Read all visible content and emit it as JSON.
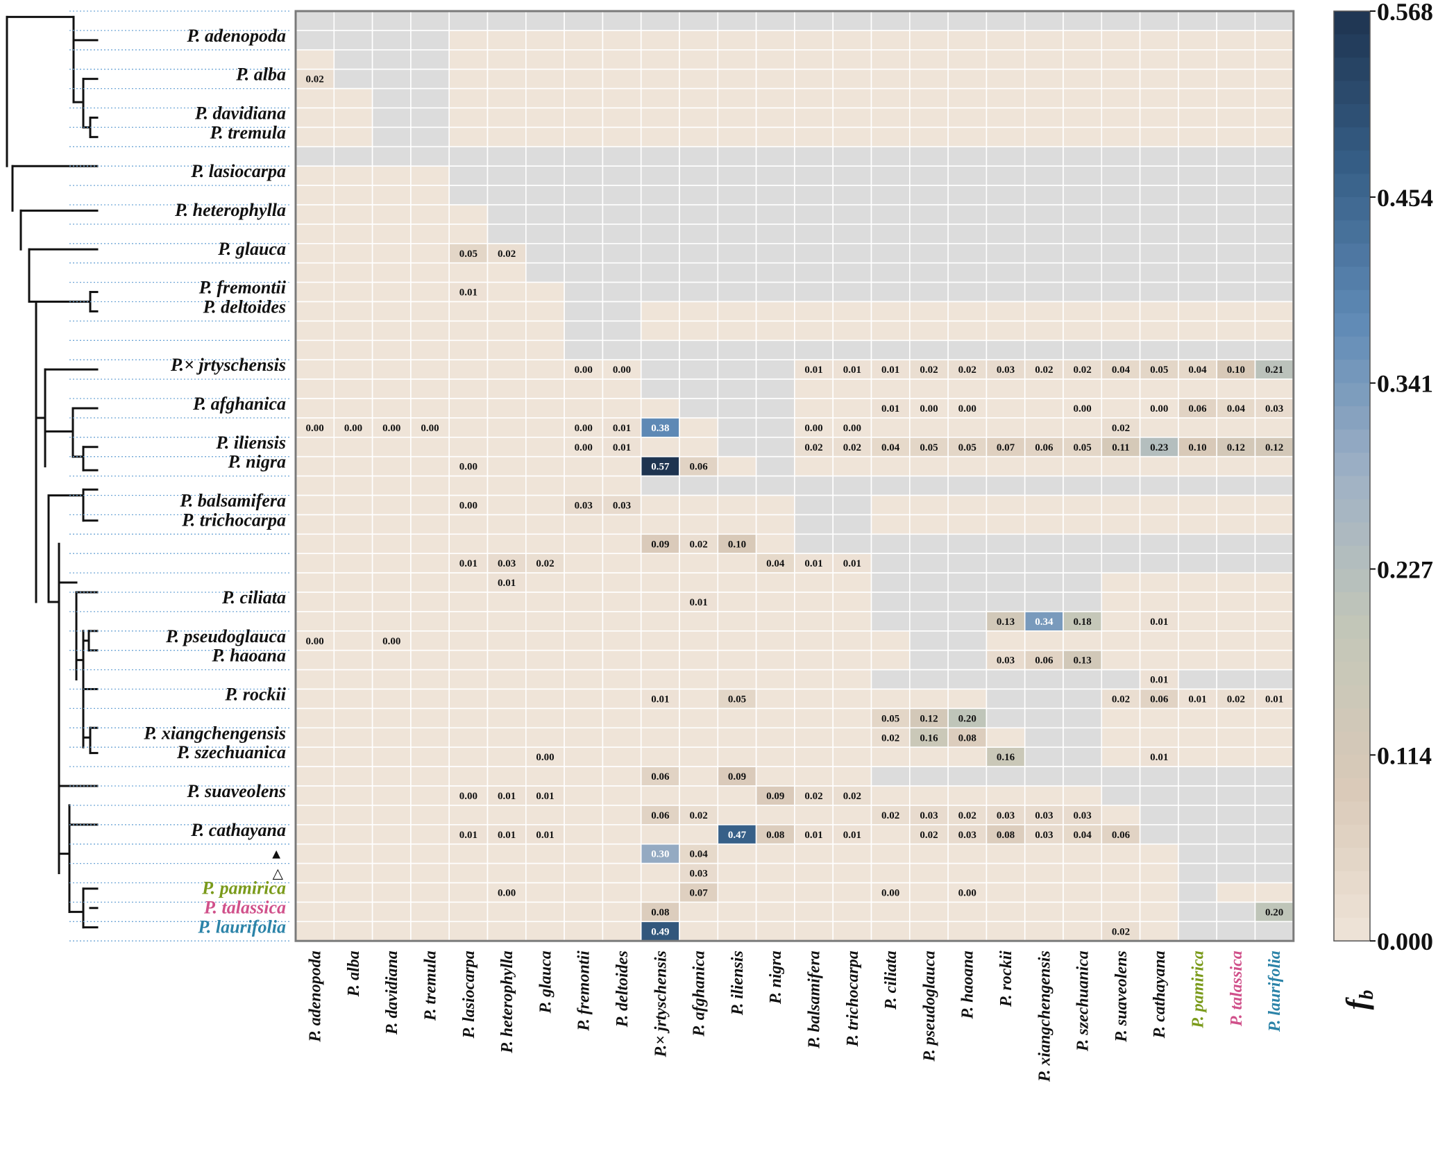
{
  "chart_data": {
    "type": "heatmap",
    "title": "",
    "colorbar": {
      "label": "f",
      "label_sub": "b",
      "ticks": [
        "0.000",
        "0.114",
        "0.227",
        "0.341",
        "0.454",
        "0.568"
      ],
      "range": [
        0,
        0.568
      ],
      "colors": [
        "#efe4d8",
        "#d9c9b8",
        "#c3c7b8",
        "#9fb1c5",
        "#5f8ab6",
        "#365e86",
        "#1e3450"
      ]
    },
    "columns": [
      {
        "label": "P. adenopoda",
        "color": "#111111"
      },
      {
        "label": "P. alba",
        "color": "#111111"
      },
      {
        "label": "P. davidiana",
        "color": "#111111"
      },
      {
        "label": "P. tremula",
        "color": "#111111"
      },
      {
        "label": "P. lasiocarpa",
        "color": "#111111"
      },
      {
        "label": "P. heterophylla",
        "color": "#111111"
      },
      {
        "label": "P. glauca",
        "color": "#111111"
      },
      {
        "label": "P. fremontii",
        "color": "#111111"
      },
      {
        "label": "P. deltoides",
        "color": "#111111"
      },
      {
        "label": "P.× jrtyschensis",
        "color": "#111111"
      },
      {
        "label": "P. afghanica",
        "color": "#111111"
      },
      {
        "label": "P. iliensis",
        "color": "#111111"
      },
      {
        "label": "P. nigra",
        "color": "#111111"
      },
      {
        "label": "P. balsamifera",
        "color": "#111111"
      },
      {
        "label": "P. trichocarpa",
        "color": "#111111"
      },
      {
        "label": "P. ciliata",
        "color": "#111111"
      },
      {
        "label": "P. pseudoglauca",
        "color": "#111111"
      },
      {
        "label": "P. haoana",
        "color": "#111111"
      },
      {
        "label": "P. rockii",
        "color": "#111111"
      },
      {
        "label": "P. xiangchengensis",
        "color": "#111111"
      },
      {
        "label": "P. szechuanica",
        "color": "#111111"
      },
      {
        "label": "P. suaveolens",
        "color": "#111111"
      },
      {
        "label": "P. cathayana",
        "color": "#111111"
      },
      {
        "label": "P. pamirica",
        "color": "#7a9a1a"
      },
      {
        "label": "P. talassica",
        "color": "#d0508a"
      },
      {
        "label": "P. laurifolia",
        "color": "#2b83a8"
      }
    ],
    "row_labels": [
      {
        "label": "P. adenopoda",
        "row": 1,
        "color": "#111111"
      },
      {
        "label": "P. alba",
        "row": 3,
        "color": "#111111"
      },
      {
        "label": "P. davidiana",
        "row": 5,
        "color": "#111111"
      },
      {
        "label": "P. tremula",
        "row": 6,
        "color": "#111111"
      },
      {
        "label": "P. lasiocarpa",
        "row": 8,
        "color": "#111111"
      },
      {
        "label": "P. heterophylla",
        "row": 10,
        "color": "#111111"
      },
      {
        "label": "P. glauca",
        "row": 12,
        "color": "#111111"
      },
      {
        "label": "P. fremontii",
        "row": 14,
        "color": "#111111"
      },
      {
        "label": "P. deltoides",
        "row": 15,
        "color": "#111111"
      },
      {
        "label": "P.× jrtyschensis",
        "row": 18,
        "color": "#111111"
      },
      {
        "label": "P. afghanica",
        "row": 20,
        "color": "#111111"
      },
      {
        "label": "P. iliensis",
        "row": 22,
        "color": "#111111"
      },
      {
        "label": "P. nigra",
        "row": 23,
        "color": "#111111"
      },
      {
        "label": "P. balsamifera",
        "row": 25,
        "color": "#111111"
      },
      {
        "label": "P. trichocarpa",
        "row": 26,
        "color": "#111111"
      },
      {
        "label": "P. ciliata",
        "row": 30,
        "color": "#111111"
      },
      {
        "label": "P. pseudoglauca",
        "row": 32,
        "color": "#111111"
      },
      {
        "label": "P. haoana",
        "row": 33,
        "color": "#111111"
      },
      {
        "label": "P. rockii",
        "row": 35,
        "color": "#111111"
      },
      {
        "label": "P. xiangchengensis",
        "row": 37,
        "color": "#111111"
      },
      {
        "label": "P. szechuanica",
        "row": 38,
        "color": "#111111"
      },
      {
        "label": "P. suaveolens",
        "row": 40,
        "color": "#111111"
      },
      {
        "label": "P. cathayana",
        "row": 42,
        "color": "#111111"
      },
      {
        "label": "P. pamirica",
        "row": 45,
        "color": "#7a9a1a"
      },
      {
        "label": "P. talassica",
        "row": 46,
        "color": "#d0508a"
      },
      {
        "label": "P. laurifolia",
        "row": 47,
        "color": "#2b83a8"
      }
    ],
    "row_markers": [
      {
        "symbol": "▲",
        "row": 43
      },
      {
        "symbol": "△",
        "row": 44
      }
    ],
    "n_rows": 48,
    "n_cols": 26,
    "gray_region_note": "non-applicable combinations drawn in light gray",
    "gray_cells": [
      [
        0,
        0,
        26
      ],
      [
        1,
        0,
        4
      ],
      [
        2,
        1,
        4
      ],
      [
        3,
        1,
        4
      ],
      [
        4,
        2,
        4
      ],
      [
        5,
        2,
        4
      ],
      [
        6,
        2,
        4
      ],
      [
        7,
        0,
        26
      ],
      [
        8,
        4,
        26
      ],
      [
        9,
        4,
        26
      ],
      [
        10,
        5,
        26
      ],
      [
        11,
        5,
        26
      ],
      [
        12,
        6,
        26
      ],
      [
        13,
        6,
        26
      ],
      [
        14,
        7,
        26
      ],
      [
        15,
        7,
        9
      ],
      [
        16,
        7,
        9
      ],
      [
        17,
        7,
        26
      ],
      [
        18,
        9,
        13
      ],
      [
        19,
        9,
        13
      ],
      [
        20,
        10,
        13
      ],
      [
        21,
        11,
        13
      ],
      [
        22,
        11,
        13
      ],
      [
        23,
        12,
        13
      ],
      [
        24,
        9,
        26
      ],
      [
        25,
        13,
        15
      ],
      [
        26,
        13,
        15
      ],
      [
        27,
        13,
        26
      ],
      [
        28,
        15,
        26
      ],
      [
        29,
        15,
        21
      ],
      [
        30,
        15,
        21
      ],
      [
        31,
        15,
        18
      ],
      [
        32,
        16,
        18
      ],
      [
        33,
        16,
        18
      ],
      [
        34,
        15,
        26
      ],
      [
        35,
        18,
        21
      ],
      [
        36,
        18,
        21
      ],
      [
        37,
        19,
        21
      ],
      [
        38,
        19,
        21
      ],
      [
        39,
        15,
        26
      ],
      [
        40,
        21,
        26
      ],
      [
        41,
        22,
        26
      ],
      [
        42,
        22,
        26
      ],
      [
        43,
        23,
        26
      ],
      [
        44,
        23,
        26
      ],
      [
        45,
        23,
        24
      ],
      [
        46,
        23,
        25
      ],
      [
        47,
        23,
        26
      ]
    ],
    "values": [
      {
        "r": 3,
        "c": 0,
        "v": 0.02,
        "t": "0.02"
      },
      {
        "r": 12,
        "c": 4,
        "v": 0.05,
        "t": "0.05"
      },
      {
        "r": 12,
        "c": 5,
        "v": 0.02,
        "t": "0.02"
      },
      {
        "r": 14,
        "c": 4,
        "v": 0.01,
        "t": "0.01"
      },
      {
        "r": 18,
        "c": 7,
        "v": 0.0,
        "t": "0.00"
      },
      {
        "r": 18,
        "c": 8,
        "v": 0.0,
        "t": "0.00"
      },
      {
        "r": 18,
        "c": 13,
        "v": 0.01,
        "t": "0.01"
      },
      {
        "r": 18,
        "c": 14,
        "v": 0.01,
        "t": "0.01"
      },
      {
        "r": 18,
        "c": 15,
        "v": 0.01,
        "t": "0.01"
      },
      {
        "r": 18,
        "c": 16,
        "v": 0.02,
        "t": "0.02"
      },
      {
        "r": 18,
        "c": 17,
        "v": 0.02,
        "t": "0.02"
      },
      {
        "r": 18,
        "c": 18,
        "v": 0.03,
        "t": "0.03"
      },
      {
        "r": 18,
        "c": 19,
        "v": 0.02,
        "t": "0.02"
      },
      {
        "r": 18,
        "c": 20,
        "v": 0.02,
        "t": "0.02"
      },
      {
        "r": 18,
        "c": 21,
        "v": 0.04,
        "t": "0.04"
      },
      {
        "r": 18,
        "c": 22,
        "v": 0.05,
        "t": "0.05"
      },
      {
        "r": 18,
        "c": 23,
        "v": 0.04,
        "t": "0.04"
      },
      {
        "r": 18,
        "c": 24,
        "v": 0.1,
        "t": "0.10"
      },
      {
        "r": 18,
        "c": 25,
        "v": 0.21,
        "t": "0.21"
      },
      {
        "r": 20,
        "c": 15,
        "v": 0.01,
        "t": "0.01"
      },
      {
        "r": 20,
        "c": 16,
        "v": 0.0,
        "t": "0.00"
      },
      {
        "r": 20,
        "c": 17,
        "v": 0.0,
        "t": "0.00"
      },
      {
        "r": 20,
        "c": 20,
        "v": 0.0,
        "t": "0.00"
      },
      {
        "r": 20,
        "c": 22,
        "v": 0.0,
        "t": "0.00"
      },
      {
        "r": 20,
        "c": 23,
        "v": 0.06,
        "t": "0.06"
      },
      {
        "r": 20,
        "c": 24,
        "v": 0.04,
        "t": "0.04"
      },
      {
        "r": 20,
        "c": 25,
        "v": 0.03,
        "t": "0.03"
      },
      {
        "r": 21,
        "c": 0,
        "v": 0.0,
        "t": "0.00"
      },
      {
        "r": 21,
        "c": 1,
        "v": 0.0,
        "t": "0.00"
      },
      {
        "r": 21,
        "c": 2,
        "v": 0.0,
        "t": "0.00"
      },
      {
        "r": 21,
        "c": 3,
        "v": 0.0,
        "t": "0.00"
      },
      {
        "r": 21,
        "c": 7,
        "v": 0.0,
        "t": "0.00"
      },
      {
        "r": 21,
        "c": 8,
        "v": 0.01,
        "t": "0.01"
      },
      {
        "r": 21,
        "c": 9,
        "v": 0.38,
        "t": "0.38"
      },
      {
        "r": 21,
        "c": 13,
        "v": 0.0,
        "t": "0.00"
      },
      {
        "r": 21,
        "c": 14,
        "v": 0.0,
        "t": "0.00"
      },
      {
        "r": 21,
        "c": 21,
        "v": 0.02,
        "t": "0.02"
      },
      {
        "r": 22,
        "c": 7,
        "v": 0.0,
        "t": "0.00"
      },
      {
        "r": 22,
        "c": 8,
        "v": 0.01,
        "t": "0.01"
      },
      {
        "r": 22,
        "c": 13,
        "v": 0.02,
        "t": "0.02"
      },
      {
        "r": 22,
        "c": 14,
        "v": 0.02,
        "t": "0.02"
      },
      {
        "r": 22,
        "c": 15,
        "v": 0.04,
        "t": "0.04"
      },
      {
        "r": 22,
        "c": 16,
        "v": 0.05,
        "t": "0.05"
      },
      {
        "r": 22,
        "c": 17,
        "v": 0.05,
        "t": "0.05"
      },
      {
        "r": 22,
        "c": 18,
        "v": 0.07,
        "t": "0.07"
      },
      {
        "r": 22,
        "c": 19,
        "v": 0.06,
        "t": "0.06"
      },
      {
        "r": 22,
        "c": 20,
        "v": 0.05,
        "t": "0.05"
      },
      {
        "r": 22,
        "c": 21,
        "v": 0.11,
        "t": "0.11"
      },
      {
        "r": 22,
        "c": 22,
        "v": 0.23,
        "t": "0.23"
      },
      {
        "r": 22,
        "c": 23,
        "v": 0.1,
        "t": "0.10"
      },
      {
        "r": 22,
        "c": 24,
        "v": 0.12,
        "t": "0.12"
      },
      {
        "r": 22,
        "c": 25,
        "v": 0.12,
        "t": "0.12"
      },
      {
        "r": 23,
        "c": 4,
        "v": 0.0,
        "t": "0.00"
      },
      {
        "r": 23,
        "c": 9,
        "v": 0.57,
        "t": "0.57"
      },
      {
        "r": 23,
        "c": 10,
        "v": 0.06,
        "t": "0.06"
      },
      {
        "r": 25,
        "c": 4,
        "v": 0.0,
        "t": "0.00"
      },
      {
        "r": 25,
        "c": 7,
        "v": 0.03,
        "t": "0.03"
      },
      {
        "r": 25,
        "c": 8,
        "v": 0.03,
        "t": "0.03"
      },
      {
        "r": 27,
        "c": 9,
        "v": 0.09,
        "t": "0.09"
      },
      {
        "r": 27,
        "c": 10,
        "v": 0.02,
        "t": "0.02"
      },
      {
        "r": 27,
        "c": 11,
        "v": 0.1,
        "t": "0.10"
      },
      {
        "r": 28,
        "c": 4,
        "v": 0.01,
        "t": "0.01"
      },
      {
        "r": 28,
        "c": 5,
        "v": 0.03,
        "t": "0.03"
      },
      {
        "r": 28,
        "c": 6,
        "v": 0.02,
        "t": "0.02"
      },
      {
        "r": 28,
        "c": 12,
        "v": 0.04,
        "t": "0.04"
      },
      {
        "r": 28,
        "c": 13,
        "v": 0.01,
        "t": "0.01"
      },
      {
        "r": 28,
        "c": 14,
        "v": 0.01,
        "t": "0.01"
      },
      {
        "r": 29,
        "c": 5,
        "v": 0.01,
        "t": "0.01"
      },
      {
        "r": 30,
        "c": 10,
        "v": 0.01,
        "t": "0.01"
      },
      {
        "r": 31,
        "c": 18,
        "v": 0.13,
        "t": "0.13"
      },
      {
        "r": 31,
        "c": 19,
        "v": 0.34,
        "t": "0.34"
      },
      {
        "r": 31,
        "c": 20,
        "v": 0.18,
        "t": "0.18"
      },
      {
        "r": 31,
        "c": 22,
        "v": 0.01,
        "t": "0.01"
      },
      {
        "r": 32,
        "c": 0,
        "v": 0.0,
        "t": "0.00"
      },
      {
        "r": 32,
        "c": 2,
        "v": 0.0,
        "t": "0.00"
      },
      {
        "r": 33,
        "c": 18,
        "v": 0.03,
        "t": "0.03"
      },
      {
        "r": 33,
        "c": 19,
        "v": 0.06,
        "t": "0.06"
      },
      {
        "r": 33,
        "c": 20,
        "v": 0.13,
        "t": "0.13"
      },
      {
        "r": 34,
        "c": 22,
        "v": 0.01,
        "t": "0.01"
      },
      {
        "r": 35,
        "c": 9,
        "v": 0.01,
        "t": "0.01"
      },
      {
        "r": 35,
        "c": 11,
        "v": 0.05,
        "t": "0.05"
      },
      {
        "r": 35,
        "c": 21,
        "v": 0.02,
        "t": "0.02"
      },
      {
        "r": 35,
        "c": 22,
        "v": 0.06,
        "t": "0.06"
      },
      {
        "r": 35,
        "c": 23,
        "v": 0.01,
        "t": "0.01"
      },
      {
        "r": 35,
        "c": 24,
        "v": 0.02,
        "t": "0.02"
      },
      {
        "r": 35,
        "c": 25,
        "v": 0.01,
        "t": "0.01"
      },
      {
        "r": 36,
        "c": 15,
        "v": 0.05,
        "t": "0.05"
      },
      {
        "r": 36,
        "c": 16,
        "v": 0.12,
        "t": "0.12"
      },
      {
        "r": 36,
        "c": 17,
        "v": 0.2,
        "t": "0.20"
      },
      {
        "r": 37,
        "c": 15,
        "v": 0.02,
        "t": "0.02"
      },
      {
        "r": 37,
        "c": 16,
        "v": 0.16,
        "t": "0.16"
      },
      {
        "r": 37,
        "c": 17,
        "v": 0.08,
        "t": "0.08"
      },
      {
        "r": 38,
        "c": 6,
        "v": 0.0,
        "t": "0.00"
      },
      {
        "r": 38,
        "c": 18,
        "v": 0.16,
        "t": "0.16"
      },
      {
        "r": 38,
        "c": 22,
        "v": 0.01,
        "t": "0.01"
      },
      {
        "r": 39,
        "c": 9,
        "v": 0.06,
        "t": "0.06"
      },
      {
        "r": 39,
        "c": 11,
        "v": 0.09,
        "t": "0.09"
      },
      {
        "r": 40,
        "c": 4,
        "v": 0.0,
        "t": "0.00"
      },
      {
        "r": 40,
        "c": 5,
        "v": 0.01,
        "t": "0.01"
      },
      {
        "r": 40,
        "c": 6,
        "v": 0.01,
        "t": "0.01"
      },
      {
        "r": 40,
        "c": 12,
        "v": 0.09,
        "t": "0.09"
      },
      {
        "r": 40,
        "c": 13,
        "v": 0.02,
        "t": "0.02"
      },
      {
        "r": 40,
        "c": 14,
        "v": 0.02,
        "t": "0.02"
      },
      {
        "r": 41,
        "c": 9,
        "v": 0.06,
        "t": "0.06"
      },
      {
        "r": 41,
        "c": 10,
        "v": 0.02,
        "t": "0.02"
      },
      {
        "r": 41,
        "c": 15,
        "v": 0.02,
        "t": "0.02"
      },
      {
        "r": 41,
        "c": 16,
        "v": 0.03,
        "t": "0.03"
      },
      {
        "r": 41,
        "c": 17,
        "v": 0.02,
        "t": "0.02"
      },
      {
        "r": 41,
        "c": 18,
        "v": 0.03,
        "t": "0.03"
      },
      {
        "r": 41,
        "c": 19,
        "v": 0.03,
        "t": "0.03"
      },
      {
        "r": 41,
        "c": 20,
        "v": 0.03,
        "t": "0.03"
      },
      {
        "r": 42,
        "c": 4,
        "v": 0.01,
        "t": "0.01"
      },
      {
        "r": 42,
        "c": 5,
        "v": 0.01,
        "t": "0.01"
      },
      {
        "r": 42,
        "c": 6,
        "v": 0.01,
        "t": "0.01"
      },
      {
        "r": 42,
        "c": 11,
        "v": 0.47,
        "t": "0.47"
      },
      {
        "r": 42,
        "c": 12,
        "v": 0.08,
        "t": "0.08"
      },
      {
        "r": 42,
        "c": 13,
        "v": 0.01,
        "t": "0.01"
      },
      {
        "r": 42,
        "c": 14,
        "v": 0.01,
        "t": "0.01"
      },
      {
        "r": 42,
        "c": 16,
        "v": 0.02,
        "t": "0.02"
      },
      {
        "r": 42,
        "c": 17,
        "v": 0.03,
        "t": "0.03"
      },
      {
        "r": 42,
        "c": 18,
        "v": 0.08,
        "t": "0.08"
      },
      {
        "r": 42,
        "c": 19,
        "v": 0.03,
        "t": "0.03"
      },
      {
        "r": 42,
        "c": 20,
        "v": 0.04,
        "t": "0.04"
      },
      {
        "r": 42,
        "c": 21,
        "v": 0.06,
        "t": "0.06"
      },
      {
        "r": 43,
        "c": 9,
        "v": 0.3,
        "t": "0.30"
      },
      {
        "r": 43,
        "c": 10,
        "v": 0.04,
        "t": "0.04"
      },
      {
        "r": 44,
        "c": 10,
        "v": 0.03,
        "t": "0.03"
      },
      {
        "r": 45,
        "c": 5,
        "v": 0.0,
        "t": "0.00"
      },
      {
        "r": 45,
        "c": 10,
        "v": 0.07,
        "t": "0.07"
      },
      {
        "r": 45,
        "c": 15,
        "v": 0.0,
        "t": "0.00"
      },
      {
        "r": 45,
        "c": 17,
        "v": 0.0,
        "t": "0.00"
      },
      {
        "r": 46,
        "c": 9,
        "v": 0.08,
        "t": "0.08"
      },
      {
        "r": 46,
        "c": 25,
        "v": 0.2,
        "t": "0.20"
      },
      {
        "r": 47,
        "c": 9,
        "v": 0.49,
        "t": "0.49"
      },
      {
        "r": 47,
        "c": 21,
        "v": 0.02,
        "t": "0.02"
      }
    ]
  }
}
